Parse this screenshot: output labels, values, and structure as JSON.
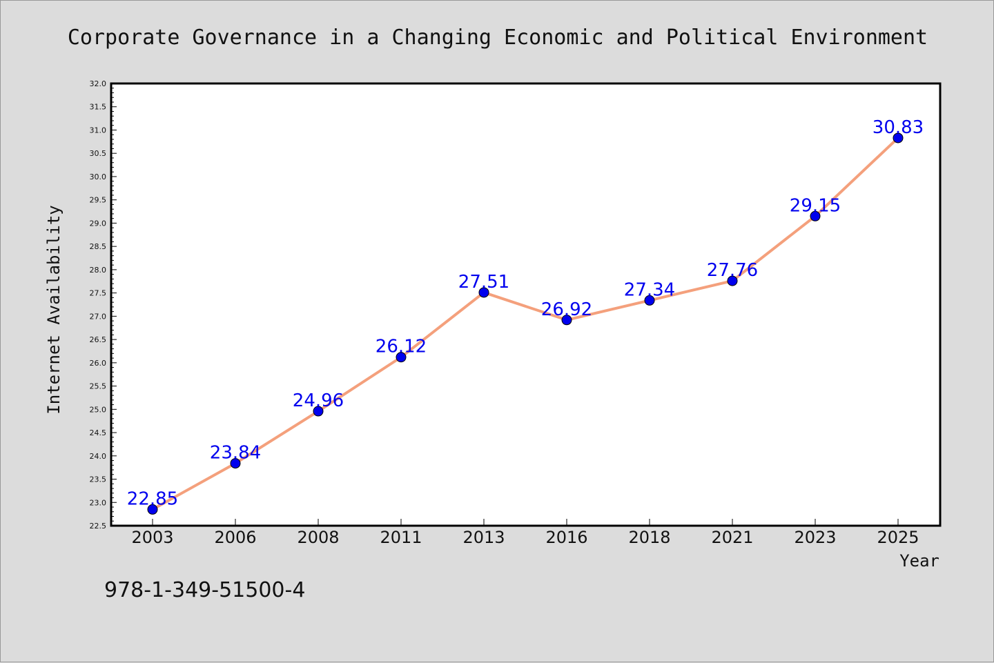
{
  "chart_data": {
    "type": "line",
    "title": "Corporate Governance in a Changing Economic and Political Environment",
    "xlabel": "Year",
    "ylabel": "Internet Availability",
    "categories": [
      "2003",
      "2006",
      "2008",
      "2011",
      "2013",
      "2016",
      "2018",
      "2021",
      "2023",
      "2025"
    ],
    "values": [
      22.85,
      23.84,
      24.96,
      26.12,
      27.51,
      26.92,
      27.34,
      27.76,
      29.15,
      30.83
    ],
    "data_labels": [
      "22.85",
      "23.84",
      "24.96",
      "26.12",
      "27.51",
      "26.92",
      "27.34",
      "27.76",
      "29.15",
      "30.83"
    ],
    "ylim": [
      22.5,
      32.0
    ],
    "yticks": [
      "22.5",
      "23.0",
      "23.5",
      "24.0",
      "24.5",
      "25.0",
      "25.5",
      "26.0",
      "26.5",
      "27.0",
      "27.5",
      "28.0",
      "28.5",
      "29.0",
      "29.5",
      "30.0",
      "30.5",
      "31.0",
      "31.5",
      "32.0"
    ],
    "grid": false,
    "legend": "none",
    "colors": {
      "line": "#f4a07c",
      "marker": "#0000ee",
      "label": "#0000ee",
      "background": "#dcdcdc",
      "plot_area": "#ffffff"
    }
  },
  "footer": {
    "isbn": "978-1-349-51500-4"
  }
}
